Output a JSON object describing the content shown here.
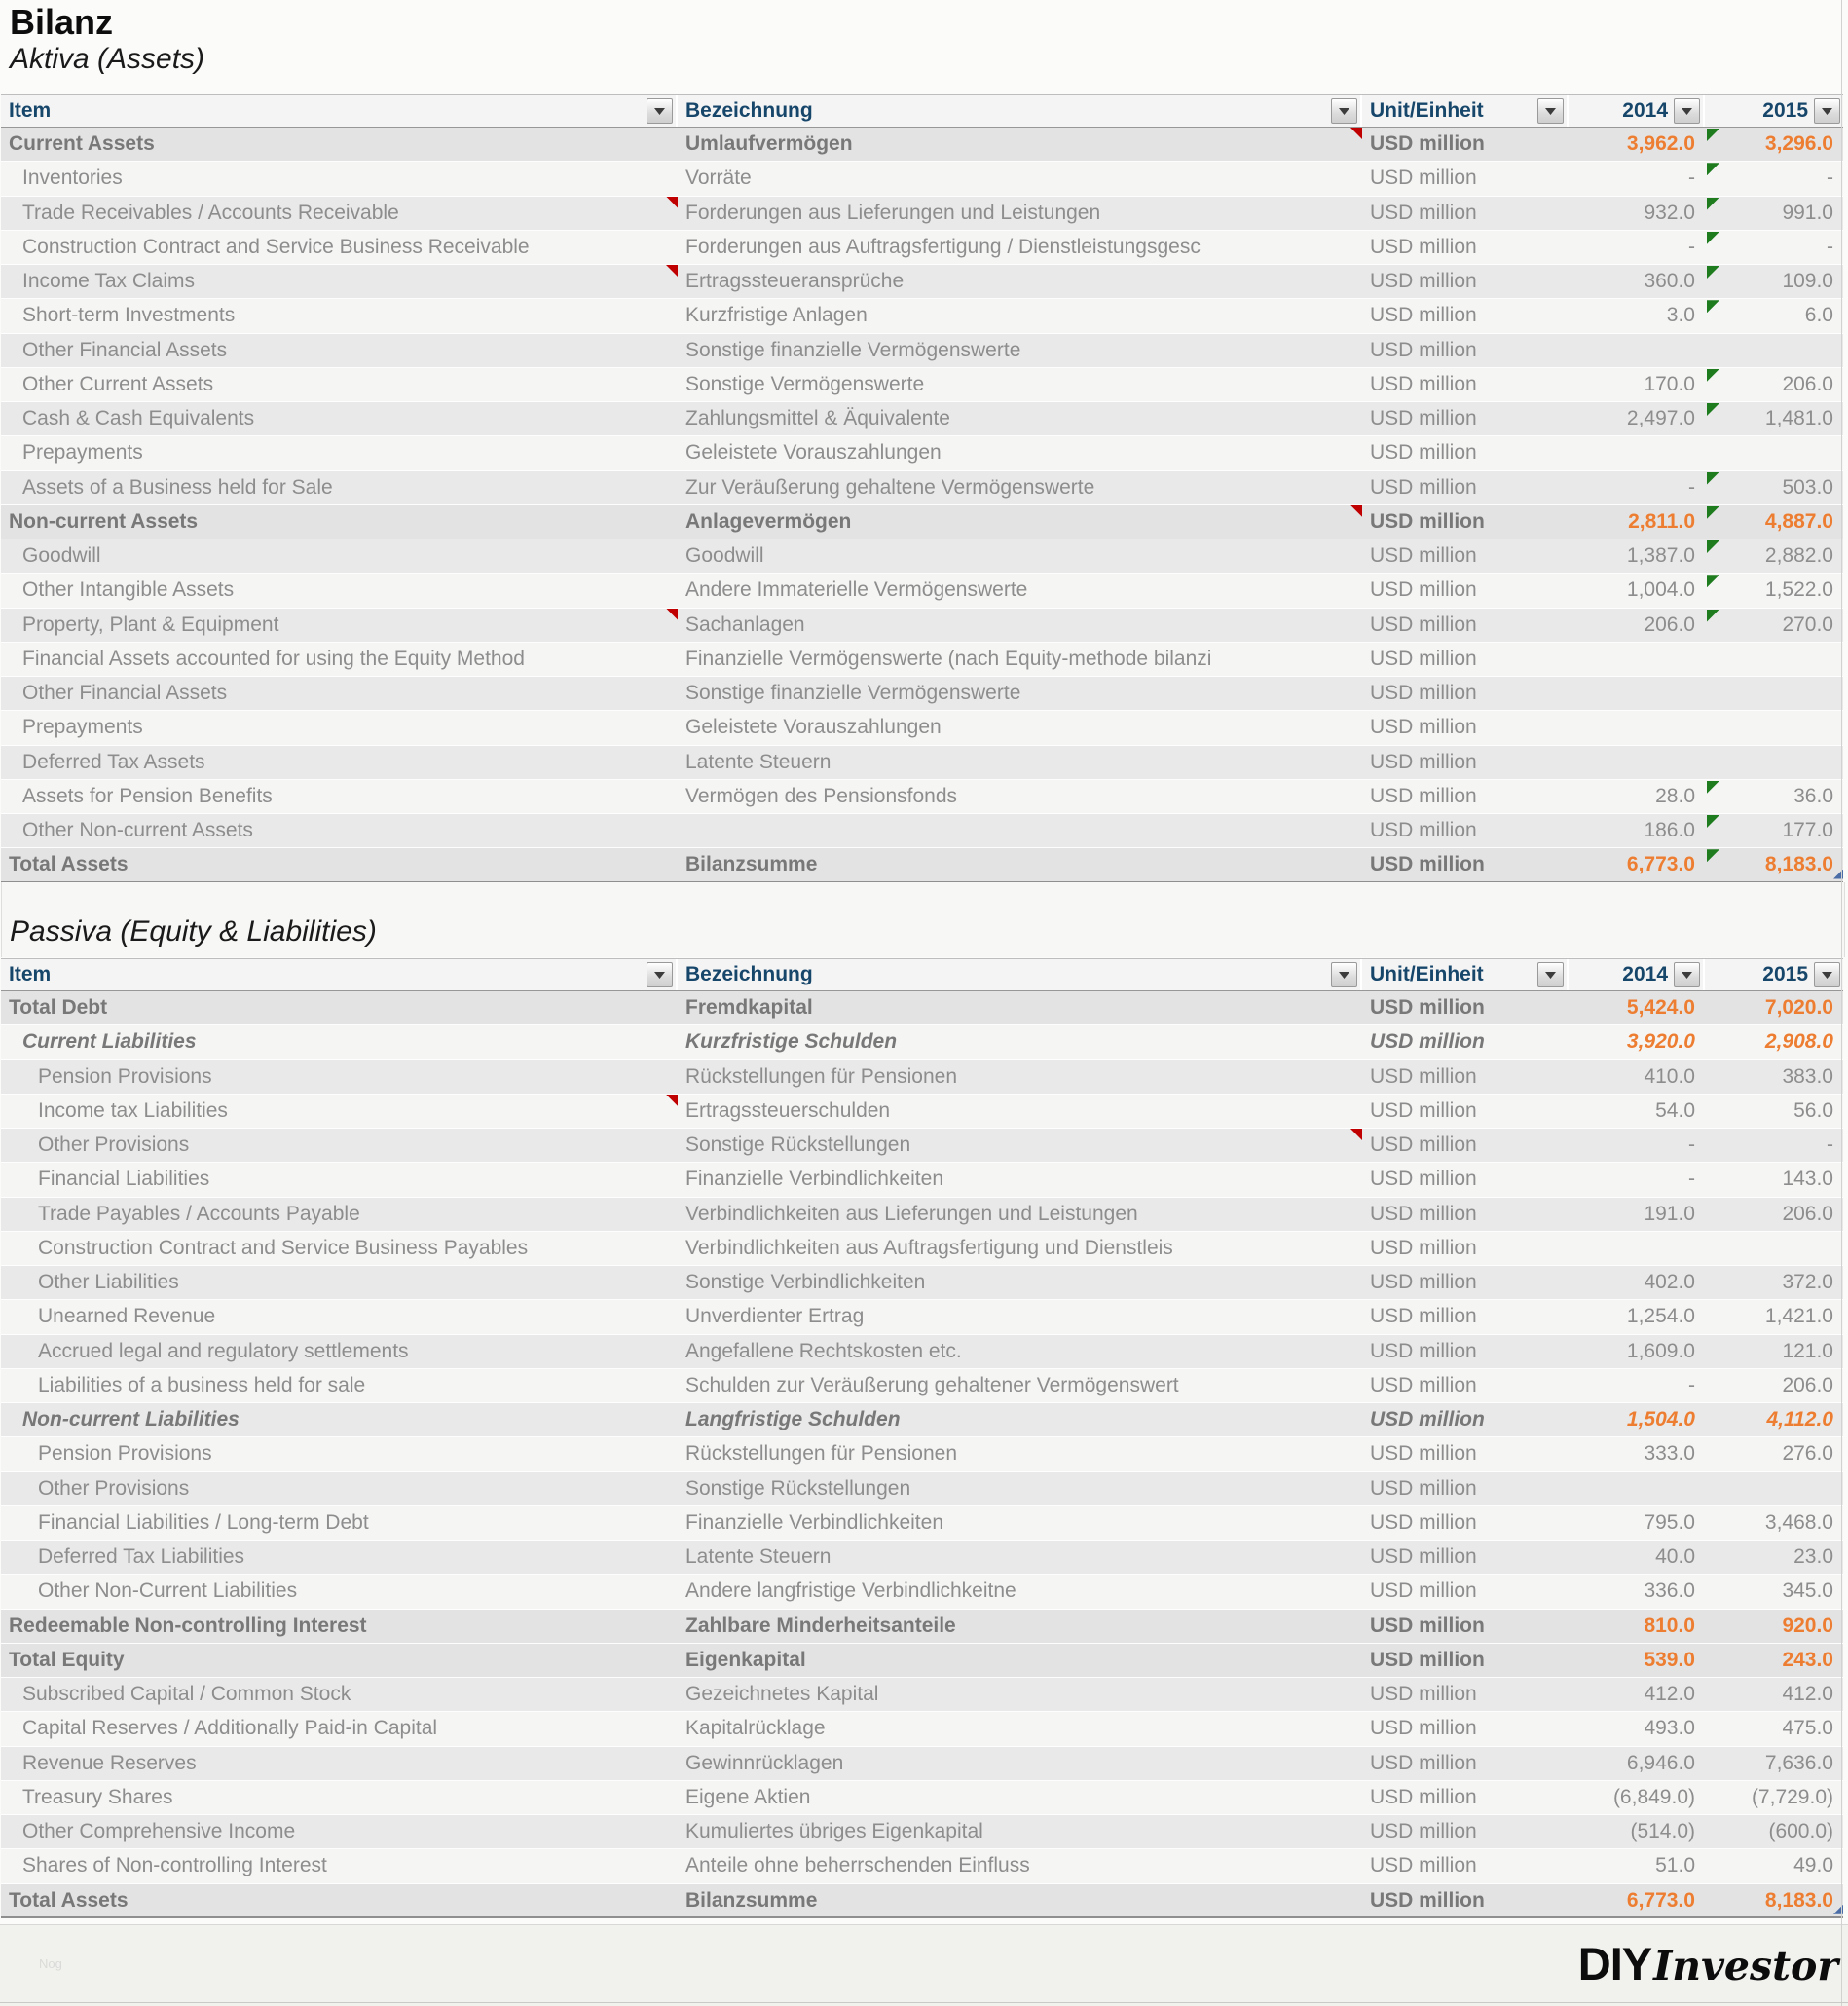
{
  "page": {
    "title": "Bilanz",
    "aktiva_title": "Aktiva (Assets)",
    "passiva_title": "Passiva (Equity & Liabilities)"
  },
  "columns": [
    "Item",
    "Bezeichnung",
    "Unit/Einheit",
    "2014",
    "2015"
  ],
  "unit_label": "USD million",
  "colors": {
    "accent_orange": "#ed7d31",
    "header_navy": "#17466b",
    "comment_red": "#c00000",
    "flag_green": "#1e7b1e",
    "corner_blue": "#4a6da7"
  },
  "footer": {
    "logo_bold": "DIY",
    "logo_script": "Investor",
    "faint_text": "Nog"
  },
  "aktiva_rows": [
    {
      "item": "Current Assets",
      "bez": "Umlaufvermögen",
      "y2014": "3,962.0",
      "y2015": "3,296.0",
      "emphasis": "section",
      "level": 0,
      "red_bez": true,
      "green": true
    },
    {
      "item": "Inventories",
      "bez": "Vorräte",
      "y2014": "-",
      "y2015": "-",
      "emphasis": "normal",
      "level": 1,
      "green": true
    },
    {
      "item": "Trade Receivables / Accounts Receivable",
      "bez": "Forderungen aus Lieferungen und Leistungen",
      "y2014": "932.0",
      "y2015": "991.0",
      "emphasis": "normal",
      "level": 1,
      "red_item": true,
      "green": true
    },
    {
      "item": "Construction Contract and Service Business Receivable",
      "bez": "Forderungen aus Auftragsfertigung / Dienstleistungsgesc",
      "y2014": "-",
      "y2015": "-",
      "emphasis": "normal",
      "level": 1,
      "green": true
    },
    {
      "item": "Income Tax Claims",
      "bez": "Ertragssteueransprüche",
      "y2014": "360.0",
      "y2015": "109.0",
      "emphasis": "normal",
      "level": 1,
      "red_item": true,
      "green": true
    },
    {
      "item": "Short-term Investments",
      "bez": "Kurzfristige Anlagen",
      "y2014": "3.0",
      "y2015": "6.0",
      "emphasis": "normal",
      "level": 1,
      "green": true
    },
    {
      "item": "Other Financial Assets",
      "bez": "Sonstige finanzielle Vermögenswerte",
      "y2014": "",
      "y2015": "",
      "emphasis": "normal",
      "level": 1
    },
    {
      "item": "Other Current Assets",
      "bez": "Sonstige Vermögenswerte",
      "y2014": "170.0",
      "y2015": "206.0",
      "emphasis": "normal",
      "level": 1,
      "green": true
    },
    {
      "item": "Cash & Cash Equivalents",
      "bez": "Zahlungsmittel & Äquivalente",
      "y2014": "2,497.0",
      "y2015": "1,481.0",
      "emphasis": "normal",
      "level": 1,
      "green": true
    },
    {
      "item": "Prepayments",
      "bez": "Geleistete Vorauszahlungen",
      "y2014": "",
      "y2015": "",
      "emphasis": "normal",
      "level": 1
    },
    {
      "item": "Assets of a Business held for Sale",
      "bez": "Zur Veräußerung gehaltene Vermögenswerte",
      "y2014": "-",
      "y2015": "503.0",
      "emphasis": "normal",
      "level": 1,
      "green": true
    },
    {
      "item": "Non-current Assets",
      "bez": "Anlagevermögen",
      "y2014": "2,811.0",
      "y2015": "4,887.0",
      "emphasis": "section",
      "level": 0,
      "red_bez": true,
      "green": true
    },
    {
      "item": "Goodwill",
      "bez": "Goodwill",
      "y2014": "1,387.0",
      "y2015": "2,882.0",
      "emphasis": "normal",
      "level": 1,
      "green": true
    },
    {
      "item": "Other Intangible Assets",
      "bez": "Andere Immaterielle Vermögenswerte",
      "y2014": "1,004.0",
      "y2015": "1,522.0",
      "emphasis": "normal",
      "level": 1,
      "green": true
    },
    {
      "item": "Property, Plant & Equipment",
      "bez": "Sachanlagen",
      "y2014": "206.0",
      "y2015": "270.0",
      "emphasis": "normal",
      "level": 1,
      "red_item": true,
      "green": true
    },
    {
      "item": "Financial Assets accounted for using the Equity Method",
      "bez": "Finanzielle Vermögenswerte (nach Equity-methode bilanzi",
      "y2014": "",
      "y2015": "",
      "emphasis": "normal",
      "level": 1
    },
    {
      "item": "Other Financial Assets",
      "bez": "Sonstige finanzielle Vermögenswerte",
      "y2014": "",
      "y2015": "",
      "emphasis": "normal",
      "level": 1
    },
    {
      "item": "Prepayments",
      "bez": "Geleistete Vorauszahlungen",
      "y2014": "",
      "y2015": "",
      "emphasis": "normal",
      "level": 1
    },
    {
      "item": "Deferred Tax Assets",
      "bez": "Latente Steuern",
      "y2014": "",
      "y2015": "",
      "emphasis": "normal",
      "level": 1
    },
    {
      "item": "Assets for Pension Benefits",
      "bez": "Vermögen des Pensionsfonds",
      "y2014": "28.0",
      "y2015": "36.0",
      "emphasis": "normal",
      "level": 1,
      "green": true
    },
    {
      "item": "Other Non-current Assets",
      "bez": "",
      "y2014": "186.0",
      "y2015": "177.0",
      "emphasis": "normal",
      "level": 1,
      "green": true
    },
    {
      "item": "Total Assets",
      "bez": "Bilanzsumme",
      "y2014": "6,773.0",
      "y2015": "8,183.0",
      "emphasis": "section",
      "level": 0,
      "green": true,
      "corner": true
    }
  ],
  "passiva_rows": [
    {
      "item": "Total Debt",
      "bez": "Fremdkapital",
      "y2014": "5,424.0",
      "y2015": "7,020.0",
      "emphasis": "section",
      "level": 0
    },
    {
      "item": "Current Liabilities",
      "bez": "Kurzfristige Schulden",
      "y2014": "3,920.0",
      "y2015": "2,908.0",
      "emphasis": "subsection",
      "level": 1
    },
    {
      "item": "Pension Provisions",
      "bez": "Rückstellungen für Pensionen",
      "y2014": "410.0",
      "y2015": "383.0",
      "emphasis": "normal",
      "level": 2
    },
    {
      "item": "Income tax Liabilities",
      "bez": "Ertragssteuerschulden",
      "y2014": "54.0",
      "y2015": "56.0",
      "emphasis": "normal",
      "level": 2,
      "red_item": true
    },
    {
      "item": "Other Provisions",
      "bez": "Sonstige Rückstellungen",
      "y2014": "-",
      "y2015": "-",
      "emphasis": "normal",
      "level": 2,
      "red_bez": true
    },
    {
      "item": "Financial Liabilities",
      "bez": "Finanzielle Verbindlichkeiten",
      "y2014": "-",
      "y2015": "143.0",
      "emphasis": "normal",
      "level": 2
    },
    {
      "item": "Trade Payables / Accounts Payable",
      "bez": "Verbindlichkeiten aus Lieferungen und Leistungen",
      "y2014": "191.0",
      "y2015": "206.0",
      "emphasis": "normal",
      "level": 2
    },
    {
      "item": "Construction Contract and Service Business Payables",
      "bez": "Verbindlichkeiten aus Auftragsfertigung und Dienstleis",
      "y2014": "",
      "y2015": "",
      "emphasis": "normal",
      "level": 2
    },
    {
      "item": "Other Liabilities",
      "bez": "Sonstige Verbindlichkeiten",
      "y2014": "402.0",
      "y2015": "372.0",
      "emphasis": "normal",
      "level": 2
    },
    {
      "item": "Unearned Revenue",
      "bez": "Unverdienter Ertrag",
      "y2014": "1,254.0",
      "y2015": "1,421.0",
      "emphasis": "normal",
      "level": 2
    },
    {
      "item": "Accrued legal and regulatory settlements",
      "bez": "Angefallene Rechtskosten etc.",
      "y2014": "1,609.0",
      "y2015": "121.0",
      "emphasis": "normal",
      "level": 2
    },
    {
      "item": "Liabilities of a business held for sale",
      "bez": "Schulden zur Veräußerung gehaltener Vermögenswert",
      "y2014": "-",
      "y2015": "206.0",
      "emphasis": "normal",
      "level": 2
    },
    {
      "item": "Non-current Liabilities",
      "bez": "Langfristige Schulden",
      "y2014": "1,504.0",
      "y2015": "4,112.0",
      "emphasis": "subsection",
      "level": 1
    },
    {
      "item": "Pension Provisions",
      "bez": "Rückstellungen für Pensionen",
      "y2014": "333.0",
      "y2015": "276.0",
      "emphasis": "normal",
      "level": 2
    },
    {
      "item": "Other Provisions",
      "bez": "Sonstige Rückstellungen",
      "y2014": "",
      "y2015": "",
      "emphasis": "normal",
      "level": 2
    },
    {
      "item": "Financial Liabilities / Long-term Debt",
      "bez": "Finanzielle Verbindlichkeiten",
      "y2014": "795.0",
      "y2015": "3,468.0",
      "emphasis": "normal",
      "level": 2
    },
    {
      "item": "Deferred Tax Liabilities",
      "bez": "Latente Steuern",
      "y2014": "40.0",
      "y2015": "23.0",
      "emphasis": "normal",
      "level": 2
    },
    {
      "item": "Other Non-Current Liabilities",
      "bez": "Andere langfristige Verbindlichkeitne",
      "y2014": "336.0",
      "y2015": "345.0",
      "emphasis": "normal",
      "level": 2
    },
    {
      "item": "Redeemable Non-controlling Interest",
      "bez": "Zahlbare Minderheitsanteile",
      "y2014": "810.0",
      "y2015": "920.0",
      "emphasis": "section",
      "level": 0
    },
    {
      "item": "Total Equity",
      "bez": "Eigenkapital",
      "y2014": "539.0",
      "y2015": "243.0",
      "emphasis": "section",
      "level": 0
    },
    {
      "item": "Subscribed Capital / Common Stock",
      "bez": "Gezeichnetes Kapital",
      "y2014": "412.0",
      "y2015": "412.0",
      "emphasis": "normal",
      "level": 1
    },
    {
      "item": "Capital Reserves / Additionally Paid-in Capital",
      "bez": "Kapitalrücklage",
      "y2014": "493.0",
      "y2015": "475.0",
      "emphasis": "normal",
      "level": 1
    },
    {
      "item": "Revenue Reserves",
      "bez": "Gewinnrücklagen",
      "y2014": "6,946.0",
      "y2015": "7,636.0",
      "emphasis": "normal",
      "level": 1
    },
    {
      "item": "Treasury Shares",
      "bez": "Eigene Aktien",
      "y2014": "(6,849.0)",
      "y2015": "(7,729.0)",
      "emphasis": "normal",
      "level": 1
    },
    {
      "item": "Other Comprehensive Income",
      "bez": "Kumuliertes übriges Eigenkapital",
      "y2014": "(514.0)",
      "y2015": "(600.0)",
      "emphasis": "normal",
      "level": 1
    },
    {
      "item": "Shares of Non-controlling Interest",
      "bez": "Anteile ohne beherrschenden Einfluss",
      "y2014": "51.0",
      "y2015": "49.0",
      "emphasis": "normal",
      "level": 1
    },
    {
      "item": "Total Assets",
      "bez": "Bilanzsumme",
      "y2014": "6,773.0",
      "y2015": "8,183.0",
      "emphasis": "section",
      "level": 0,
      "corner": true
    }
  ]
}
